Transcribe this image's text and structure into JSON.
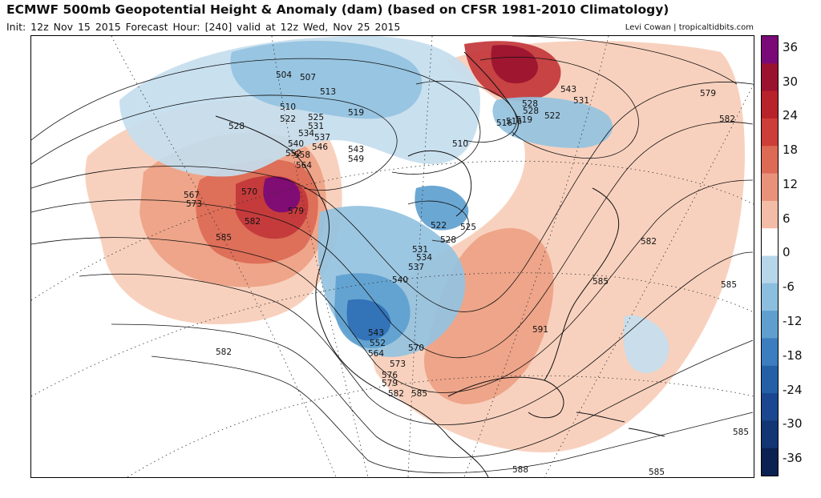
{
  "header": {
    "title": "ECMWF 500mb Geopotential Height & Anomaly (dam) (based on CFSR 1981-2010 Climatology)",
    "subtitle": "Init: 12z Nov 15 2015   Forecast Hour: [240]   valid at 12z Wed, Nov 25 2015",
    "credit": "Levi Cowan | tropicaltidbits.com"
  },
  "colorbar": {
    "labels": [
      "36",
      "30",
      "24",
      "18",
      "12",
      "6",
      "0",
      "-6",
      "-12",
      "-18",
      "-24",
      "-30",
      "-36"
    ],
    "colors": [
      "#7a0a78",
      "#9b1230",
      "#b8222a",
      "#cd3e38",
      "#dc6a55",
      "#e8927a",
      "#f3bca6",
      "#ffffff",
      "#b6d6ea",
      "#8cbede",
      "#5e9fcf",
      "#3b7dbe",
      "#2460a6",
      "#1a478f",
      "#123573",
      "#0b2152"
    ]
  },
  "map": {
    "colors": {
      "land_outline": "#111111",
      "contour": "#111111",
      "grid": "#333333",
      "pos_light": "#f7cdb8",
      "pos_med": "#eda184",
      "pos_strong": "#dc6a55",
      "pos_vstrong": "#c2363a",
      "pos_extreme": "#9b1230",
      "pos_max": "#7a0a78",
      "neg_light": "#c4ddee",
      "neg_med": "#94c2e0",
      "neg_strong": "#5e9fcf",
      "neg_vstrong": "#2f6fb5"
    },
    "contour_labels": [
      "504",
      "507",
      "513",
      "510",
      "522",
      "525",
      "528",
      "531",
      "534",
      "537",
      "540",
      "546",
      "543",
      "549",
      "552",
      "558",
      "564",
      "567",
      "570",
      "573",
      "579",
      "582",
      "585",
      "519",
      "516",
      "510",
      "522",
      "525",
      "528",
      "531",
      "534",
      "537",
      "540",
      "543",
      "552",
      "564",
      "570",
      "573",
      "576",
      "579",
      "582",
      "585",
      "588",
      "591",
      "585",
      "582",
      "579",
      "582",
      "585",
      "585",
      "585",
      "582",
      "528",
      "519",
      "522",
      "516",
      "531",
      "543",
      "528"
    ]
  }
}
